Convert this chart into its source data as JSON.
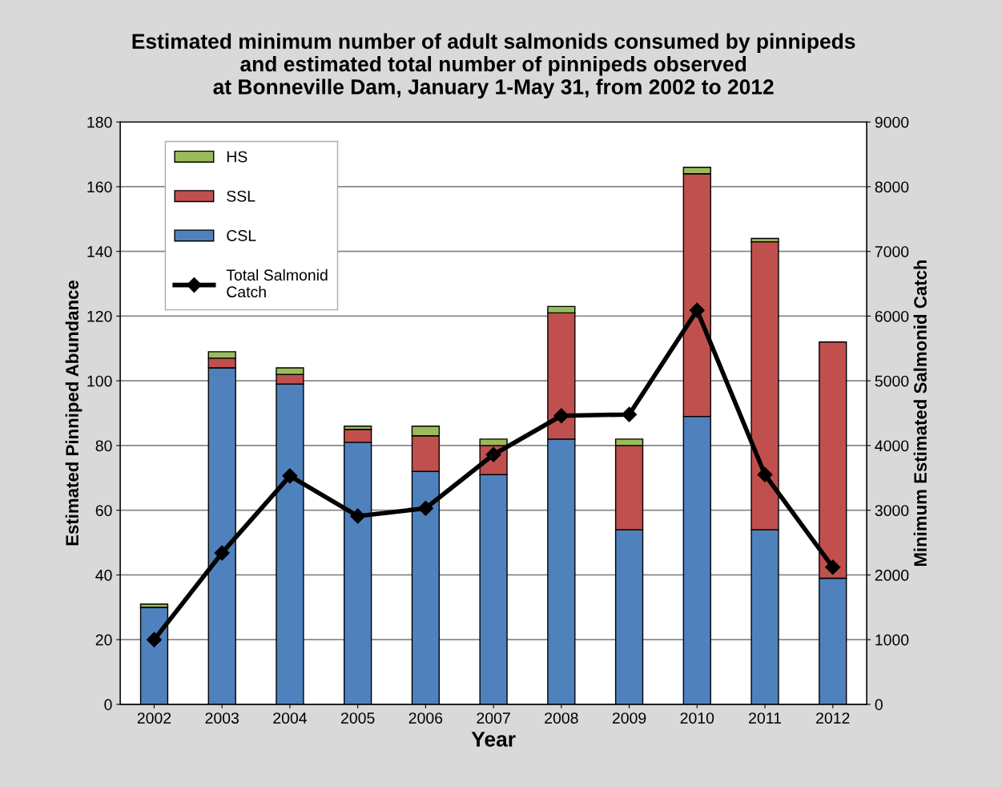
{
  "chart_data": {
    "type": "bar",
    "title": "Estimated minimum number of adult salmonids consumed by pinnipeds\nand estimated total number of pinnipeds observed\nat Bonneville Dam, January 1-May 31, from 2002 to 2012",
    "xlabel": "Year",
    "ylabel": "Estimated Pinniped Abundance",
    "y2label": "Minimum Estimated Salmonid Catch",
    "categories": [
      "2002",
      "2003",
      "2004",
      "2005",
      "2006",
      "2007",
      "2008",
      "2009",
      "2010",
      "2011",
      "2012"
    ],
    "stacked": true,
    "series": [
      {
        "name": "CSL",
        "color": "#4f81bd",
        "values": [
          30,
          104,
          99,
          81,
          72,
          71,
          82,
          54,
          89,
          54,
          39
        ]
      },
      {
        "name": "SSL",
        "color": "#c0504d",
        "values": [
          null,
          3,
          3,
          4,
          11,
          9,
          39,
          26,
          75,
          89,
          73
        ]
      },
      {
        "name": "HS",
        "color": "#9bbb59",
        "values": [
          1,
          2,
          2,
          1,
          3,
          2,
          2,
          2,
          2,
          1,
          null
        ]
      },
      {
        "name": "Total Salmonid\nCatch",
        "type": "line",
        "axis": "y2",
        "color": "#000000",
        "marker": "diamond",
        "line_style": "solid",
        "values": [
          1000,
          2340,
          3530,
          2910,
          3030,
          3860,
          4460,
          4480,
          6090,
          3550,
          2120
        ]
      }
    ],
    "ylim": [
      0,
      180
    ],
    "yticks": [
      0,
      20,
      40,
      60,
      80,
      100,
      120,
      140,
      160,
      180
    ],
    "y2lim": [
      0,
      9000
    ],
    "y2ticks": [
      0,
      1000,
      2000,
      3000,
      4000,
      5000,
      6000,
      7000,
      8000,
      9000
    ],
    "grid": "y",
    "legend": "top left"
  }
}
